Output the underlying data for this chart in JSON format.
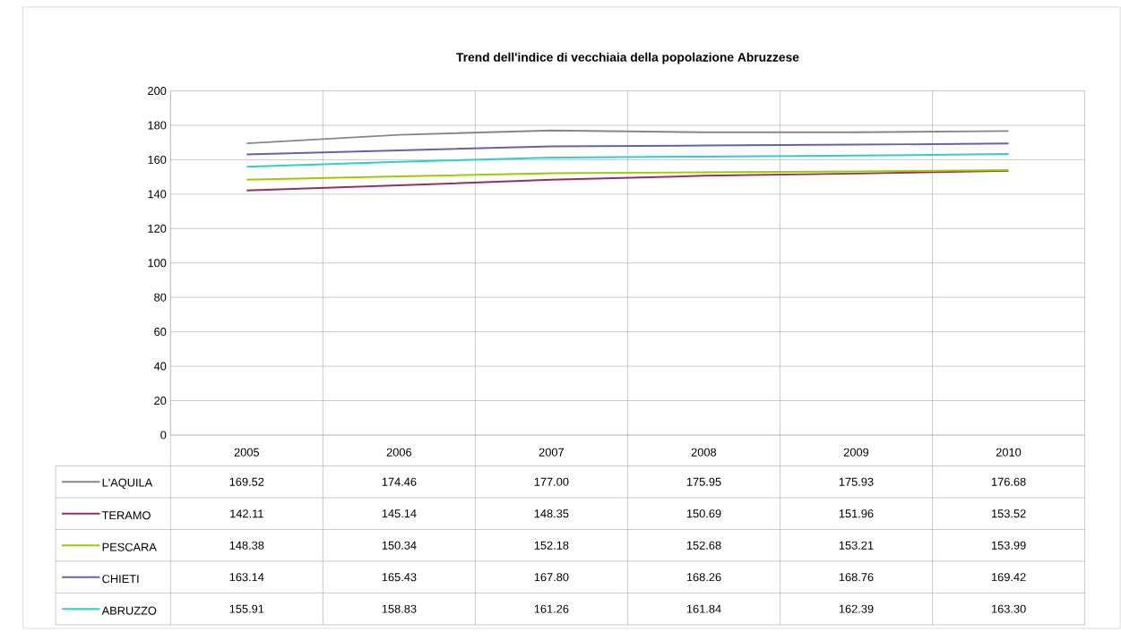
{
  "chart_data": {
    "type": "line",
    "title": "Trend dell'indice di vecchiaia della popolazione Abruzzese",
    "categories": [
      "2005",
      "2006",
      "2007",
      "2008",
      "2009",
      "2010"
    ],
    "series": [
      {
        "name": "L'AQUILA",
        "color": "#878787",
        "values": [
          169.52,
          174.46,
          177.0,
          175.95,
          175.93,
          176.68
        ],
        "value_labels": [
          "169.52",
          "174.46",
          "177.00",
          "175.95",
          "175.93",
          "176.68"
        ]
      },
      {
        "name": "TERAMO",
        "color": "#953064",
        "values": [
          142.11,
          145.14,
          148.35,
          150.69,
          151.96,
          153.52
        ],
        "value_labels": [
          "142.11",
          "145.14",
          "148.35",
          "150.69",
          "151.96",
          "153.52"
        ]
      },
      {
        "name": "PESCARA",
        "color": "#9acd00",
        "values": [
          148.38,
          150.34,
          152.18,
          152.68,
          153.21,
          153.99
        ],
        "value_labels": [
          "148.38",
          "150.34",
          "152.18",
          "152.68",
          "153.21",
          "153.99"
        ]
      },
      {
        "name": "CHIETI",
        "color": "#6464a8",
        "values": [
          163.14,
          165.43,
          167.8,
          168.26,
          168.76,
          169.42
        ],
        "value_labels": [
          "163.14",
          "165.43",
          "167.80",
          "168.26",
          "168.76",
          "169.42"
        ]
      },
      {
        "name": "ABRUZZO",
        "color": "#33cccc",
        "values": [
          155.91,
          158.83,
          161.26,
          161.84,
          162.39,
          163.3
        ],
        "value_labels": [
          "155.91",
          "158.83",
          "161.26",
          "161.84",
          "162.39",
          "163.30"
        ]
      }
    ],
    "ylim": [
      0,
      200
    ],
    "yticks": [
      0,
      20,
      40,
      60,
      80,
      100,
      120,
      140,
      160,
      180,
      200
    ],
    "grid": true,
    "legend": "bottom"
  }
}
